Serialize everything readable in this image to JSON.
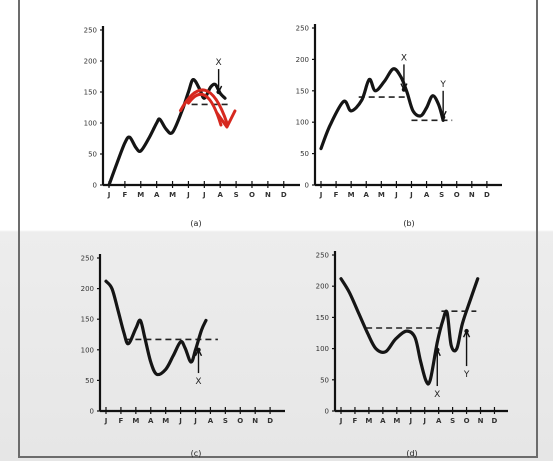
{
  "chart_data": [
    {
      "type": "line",
      "panel_label": "(a)",
      "x": [
        "J",
        "F",
        "M",
        "A",
        "M",
        "J",
        "J",
        "A",
        "S",
        "O",
        "N",
        "D"
      ],
      "y_ticks": [
        0,
        50,
        100,
        150,
        200,
        250
      ],
      "ylim": [
        0,
        250
      ],
      "series": [
        {
          "points": [
            [
              0,
              0
            ],
            [
              0.5,
              35
            ],
            [
              1,
              68
            ],
            [
              1.3,
              77
            ],
            [
              1.7,
              60
            ],
            [
              2,
              55
            ],
            [
              2.5,
              75
            ],
            [
              3,
              100
            ],
            [
              3.2,
              106
            ],
            [
              3.6,
              90
            ],
            [
              4,
              85
            ],
            [
              4.6,
              120
            ],
            [
              5,
              150
            ],
            [
              5.3,
              170
            ],
            [
              5.7,
              155
            ],
            [
              6,
              140
            ],
            [
              6.4,
              158
            ],
            [
              6.7,
              162
            ],
            [
              7,
              148
            ],
            [
              7.3,
              140
            ]
          ]
        }
      ],
      "reference_lines": [
        {
          "from": 5.2,
          "to": 7.5,
          "y": 130
        }
      ],
      "markers": [
        {
          "label": "X",
          "x": 6.9,
          "from_y": 187,
          "to_y": 150
        }
      ],
      "annotation": {
        "color": "#d6281f",
        "x": [
          4.5,
          7.8
        ],
        "peak_y": 160,
        "end_y": 100
      }
    },
    {
      "type": "line",
      "panel_label": "(b)",
      "x": [
        "J",
        "F",
        "M",
        "A",
        "M",
        "J",
        "J",
        "A",
        "S",
        "O",
        "N",
        "D"
      ],
      "y_ticks": [
        0,
        50,
        100,
        150,
        200,
        250
      ],
      "ylim": [
        0,
        250
      ],
      "series": [
        {
          "points": [
            [
              0,
              58
            ],
            [
              0.6,
              95
            ],
            [
              1.5,
              133
            ],
            [
              2,
              118
            ],
            [
              2.7,
              135
            ],
            [
              3.2,
              168
            ],
            [
              3.6,
              150
            ],
            [
              4.2,
              165
            ],
            [
              4.8,
              185
            ],
            [
              5.3,
              172
            ],
            [
              5.7,
              148
            ],
            [
              6.1,
              118
            ],
            [
              6.6,
              110
            ],
            [
              7,
              123
            ],
            [
              7.4,
              142
            ],
            [
              7.8,
              128
            ],
            [
              8.1,
              103
            ]
          ]
        }
      ],
      "reference_lines": [
        {
          "from": 2.5,
          "to": 5.6,
          "y": 140
        },
        {
          "from": 6,
          "to": 8.7,
          "y": 103
        }
      ],
      "markers": [
        {
          "label": "X",
          "x": 5.5,
          "from_y": 192,
          "to_y": 152
        },
        {
          "label": "Y",
          "x": 8.1,
          "from_y": 150,
          "to_y": 108
        }
      ]
    },
    {
      "type": "line",
      "panel_label": "(c)",
      "x": [
        "J",
        "F",
        "M",
        "A",
        "M",
        "J",
        "J",
        "A",
        "S",
        "O",
        "N",
        "D"
      ],
      "y_ticks": [
        0,
        50,
        100,
        150,
        200,
        250
      ],
      "ylim": [
        0,
        250
      ],
      "series": [
        {
          "points": [
            [
              0,
              212
            ],
            [
              0.4,
              200
            ],
            [
              0.8,
              165
            ],
            [
              1.2,
              128
            ],
            [
              1.5,
              110
            ],
            [
              2,
              135
            ],
            [
              2.3,
              148
            ],
            [
              2.6,
              120
            ],
            [
              3,
              80
            ],
            [
              3.4,
              60
            ],
            [
              4,
              68
            ],
            [
              4.5,
              90
            ],
            [
              5,
              113
            ],
            [
              5.3,
              103
            ],
            [
              5.7,
              80
            ],
            [
              6,
              100
            ],
            [
              6.4,
              132
            ],
            [
              6.7,
              148
            ]
          ]
        }
      ],
      "reference_lines": [
        {
          "from": 1.3,
          "to": 7.5,
          "y": 117
        }
      ],
      "markers": [
        {
          "label": "X",
          "x": 6.2,
          "from_y": 62,
          "to_y": 100
        }
      ]
    },
    {
      "type": "line",
      "panel_label": "(d)",
      "x": [
        "J",
        "F",
        "M",
        "A",
        "M",
        "J",
        "J",
        "A",
        "S",
        "O",
        "N",
        "D"
      ],
      "y_ticks": [
        0,
        50,
        100,
        150,
        200,
        250
      ],
      "ylim": [
        0,
        250
      ],
      "series": [
        {
          "points": [
            [
              0,
              212
            ],
            [
              0.6,
              190
            ],
            [
              1.3,
              155
            ],
            [
              1.9,
              125
            ],
            [
              2.5,
              100
            ],
            [
              3.2,
              95
            ],
            [
              3.9,
              115
            ],
            [
              4.7,
              128
            ],
            [
              5.3,
              118
            ],
            [
              5.7,
              80
            ],
            [
              6.1,
              48
            ],
            [
              6.4,
              50
            ],
            [
              6.9,
              110
            ],
            [
              7.3,
              145
            ],
            [
              7.6,
              158
            ],
            [
              7.9,
              105
            ],
            [
              8.3,
              100
            ],
            [
              8.7,
              140
            ],
            [
              9.3,
              180
            ],
            [
              9.8,
              212
            ]
          ]
        }
      ],
      "reference_lines": [
        {
          "from": 1.8,
          "to": 7.2,
          "y": 133
        },
        {
          "from": 7.2,
          "to": 9.7,
          "y": 160
        }
      ],
      "markers": [
        {
          "label": "X",
          "x": 6.9,
          "from_y": 40,
          "to_y": 98
        },
        {
          "label": "Y",
          "x": 9,
          "from_y": 72,
          "to_y": 128
        }
      ]
    }
  ]
}
